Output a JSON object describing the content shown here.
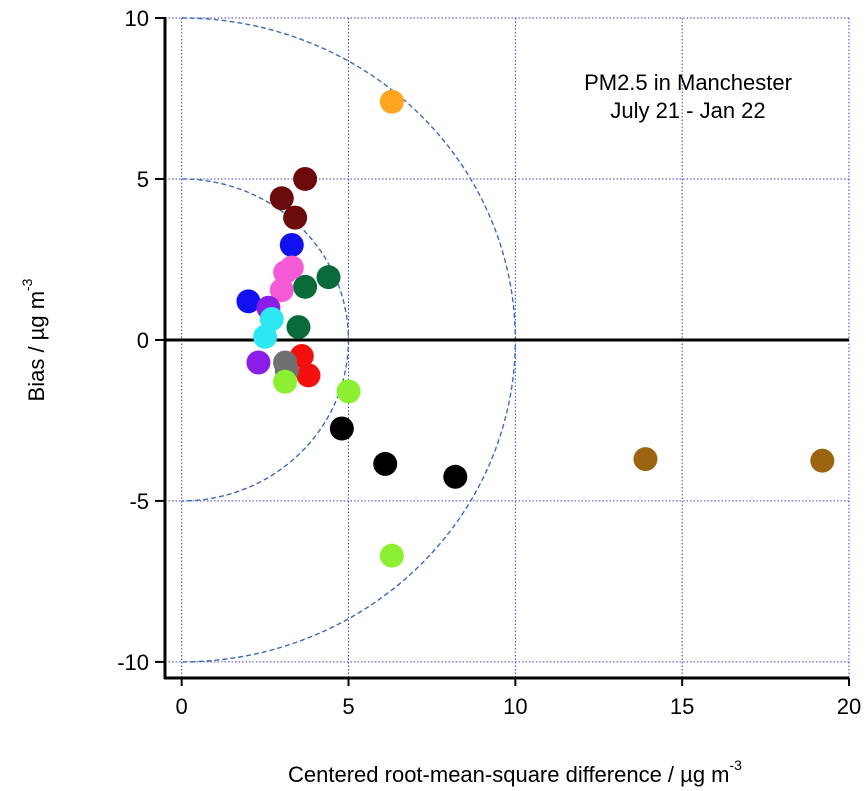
{
  "chart_data": {
    "type": "scatter",
    "title_lines": [
      "PM2.5 in Manchester",
      "July 21 - Jan 22"
    ],
    "xlabel": "Centered root-mean-square difference / µg m",
    "xlabel_sup": "-3",
    "ylabel": "Bias  / µg m",
    "ylabel_sup": "-3",
    "xlim": [
      -0.5,
      20
    ],
    "ylim": [
      -10.5,
      10
    ],
    "x_ticks": [
      0,
      5,
      10,
      15,
      20
    ],
    "x_tick_labels": [
      "0",
      "5",
      "10",
      "15",
      "20"
    ],
    "y_ticks": [
      -10,
      -5,
      0,
      5,
      10
    ],
    "y_tick_labels": [
      "-10",
      "-5",
      "0",
      "5",
      "10"
    ],
    "grid": true,
    "grid_color": "#3b3bdc",
    "reference_circle_radii": [
      5,
      10
    ],
    "reference_circle_color": "#3a6db5",
    "points": [
      {
        "x": 6.3,
        "y": 7.4,
        "color": "#ffa51e"
      },
      {
        "x": 3.7,
        "y": 5.0,
        "color": "#6b0b0b"
      },
      {
        "x": 3.0,
        "y": 4.4,
        "color": "#6b0b0b"
      },
      {
        "x": 3.4,
        "y": 3.8,
        "color": "#6b0b0b"
      },
      {
        "x": 3.3,
        "y": 2.95,
        "color": "#1010f0"
      },
      {
        "x": 2.0,
        "y": 1.2,
        "color": "#1010f0"
      },
      {
        "x": 4.4,
        "y": 1.95,
        "color": "#0a6b3a"
      },
      {
        "x": 3.7,
        "y": 1.65,
        "color": "#0a6b3a"
      },
      {
        "x": 3.5,
        "y": 0.4,
        "color": "#0a6b3a"
      },
      {
        "x": 3.3,
        "y": 2.25,
        "color": "#f55ad6"
      },
      {
        "x": 3.1,
        "y": 2.1,
        "color": "#f55ad6"
      },
      {
        "x": 3.0,
        "y": 1.55,
        "color": "#f55ad6"
      },
      {
        "x": 2.6,
        "y": 1.0,
        "color": "#8a1ee6"
      },
      {
        "x": 2.7,
        "y": 0.65,
        "color": "#2ce8f5"
      },
      {
        "x": 2.5,
        "y": 0.1,
        "color": "#2ce8f5"
      },
      {
        "x": 2.3,
        "y": -0.7,
        "color": "#8a1ee6"
      },
      {
        "x": 3.6,
        "y": -0.5,
        "color": "#f51010"
      },
      {
        "x": 3.8,
        "y": -1.1,
        "color": "#f51010"
      },
      {
        "x": 3.1,
        "y": -0.7,
        "color": "#707070"
      },
      {
        "x": 3.15,
        "y": -0.95,
        "color": "#707070"
      },
      {
        "x": 3.1,
        "y": -1.3,
        "color": "#8cf032"
      },
      {
        "x": 5.0,
        "y": -1.6,
        "color": "#8cf032"
      },
      {
        "x": 6.3,
        "y": -6.7,
        "color": "#8cf032"
      },
      {
        "x": 4.8,
        "y": -2.75,
        "color": "#000000"
      },
      {
        "x": 6.1,
        "y": -3.85,
        "color": "#000000"
      },
      {
        "x": 8.2,
        "y": -4.25,
        "color": "#000000"
      },
      {
        "x": 13.9,
        "y": -3.7,
        "color": "#9a6410"
      },
      {
        "x": 19.2,
        "y": -3.75,
        "color": "#9a6410"
      }
    ]
  }
}
